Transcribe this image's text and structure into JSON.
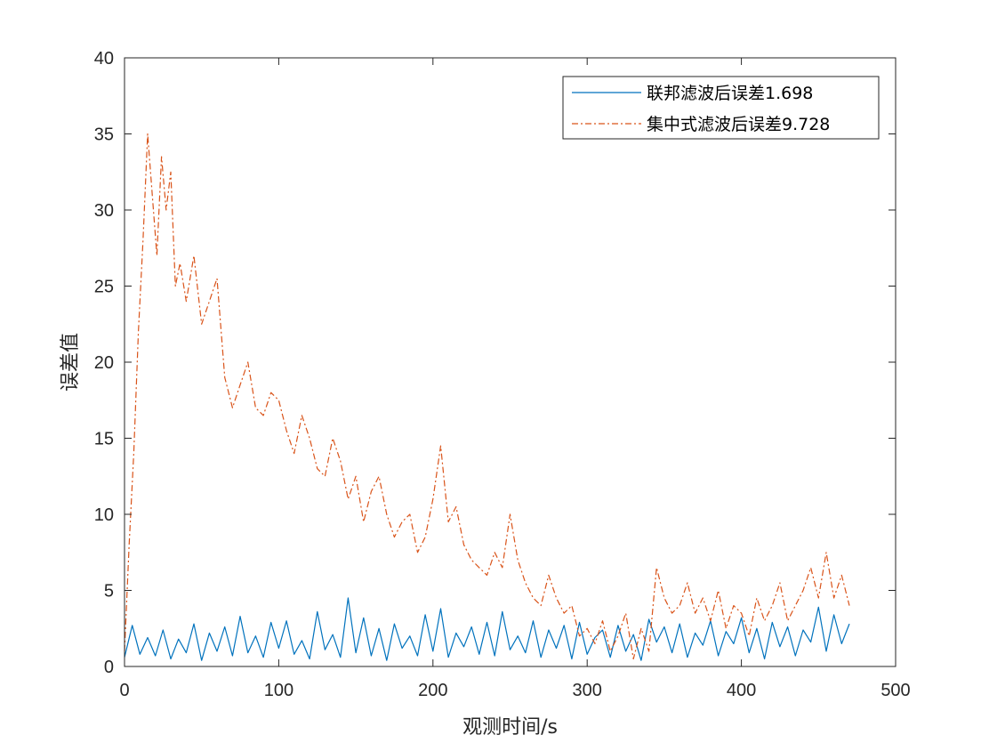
{
  "chart_data": {
    "type": "line",
    "title": "",
    "xlabel": "观测时间/s",
    "ylabel": "误差值",
    "xlim": [
      0,
      500
    ],
    "ylim": [
      0,
      40
    ],
    "xticks": [
      0,
      100,
      200,
      300,
      400,
      500
    ],
    "yticks": [
      0,
      5,
      10,
      15,
      20,
      25,
      30,
      35,
      40
    ],
    "grid": false,
    "box": true,
    "legend_position": "top-right",
    "series": [
      {
        "name": "联邦滤波后误差1.698",
        "color": "#0072BD",
        "line_style": "solid",
        "x": [
          0,
          5,
          10,
          15,
          20,
          25,
          30,
          35,
          40,
          45,
          50,
          55,
          60,
          65,
          70,
          75,
          80,
          85,
          90,
          95,
          100,
          105,
          110,
          115,
          120,
          125,
          130,
          135,
          140,
          145,
          150,
          155,
          160,
          165,
          170,
          175,
          180,
          185,
          190,
          195,
          200,
          205,
          210,
          215,
          220,
          225,
          230,
          235,
          240,
          245,
          250,
          255,
          260,
          265,
          270,
          275,
          280,
          285,
          290,
          295,
          300,
          305,
          310,
          315,
          320,
          325,
          330,
          335,
          340,
          345,
          350,
          355,
          360,
          365,
          370,
          375,
          380,
          385,
          390,
          395,
          400,
          405,
          410,
          415,
          420,
          425,
          430,
          435,
          440,
          445,
          450,
          455,
          460,
          465,
          470
        ],
        "y": [
          0.6,
          2.7,
          0.8,
          1.9,
          0.7,
          2.4,
          0.5,
          1.8,
          0.9,
          2.8,
          0.4,
          2.2,
          1.0,
          2.6,
          0.7,
          3.3,
          0.9,
          2.0,
          0.6,
          2.9,
          1.2,
          3.0,
          0.8,
          1.7,
          0.5,
          3.6,
          1.1,
          2.1,
          0.6,
          4.5,
          0.9,
          3.2,
          0.7,
          2.5,
          0.4,
          2.8,
          1.2,
          2.0,
          0.7,
          3.4,
          1.0,
          3.8,
          0.6,
          2.2,
          1.3,
          2.6,
          0.8,
          2.9,
          0.7,
          3.6,
          1.1,
          2.0,
          0.9,
          3.0,
          0.6,
          2.4,
          1.2,
          2.7,
          0.5,
          2.9,
          0.8,
          1.9,
          2.4,
          0.6,
          2.7,
          1.0,
          2.1,
          0.4,
          3.1,
          1.6,
          2.6,
          0.9,
          2.8,
          0.6,
          2.2,
          1.4,
          3.0,
          0.7,
          2.3,
          1.5,
          3.2,
          0.9,
          2.5,
          0.5,
          2.9,
          1.3,
          2.6,
          0.7,
          2.4,
          1.6,
          3.9,
          1.0,
          3.4,
          1.5,
          2.8
        ]
      },
      {
        "name": "集中式滤波后误差9.728",
        "color": "#D95319",
        "line_style": "dash-dot",
        "x": [
          0,
          3,
          6,
          9,
          12,
          15,
          18,
          21,
          24,
          27,
          30,
          33,
          36,
          40,
          45,
          50,
          55,
          60,
          65,
          70,
          75,
          80,
          85,
          90,
          95,
          100,
          105,
          110,
          115,
          120,
          125,
          130,
          135,
          140,
          145,
          150,
          155,
          160,
          165,
          170,
          175,
          180,
          185,
          190,
          195,
          200,
          205,
          210,
          215,
          220,
          225,
          230,
          235,
          240,
          245,
          250,
          255,
          260,
          265,
          270,
          275,
          280,
          285,
          290,
          295,
          300,
          305,
          310,
          315,
          320,
          325,
          330,
          335,
          340,
          345,
          350,
          355,
          360,
          365,
          370,
          375,
          380,
          385,
          390,
          395,
          400,
          405,
          410,
          415,
          420,
          425,
          430,
          435,
          440,
          445,
          450,
          455,
          460,
          465,
          470
        ],
        "y": [
          1.0,
          8.0,
          14.0,
          22.0,
          28.0,
          35.0,
          31.0,
          27.0,
          33.5,
          30.0,
          32.5,
          25.0,
          26.5,
          24.0,
          27.0,
          22.5,
          24.0,
          25.5,
          19.0,
          17.0,
          18.5,
          20.0,
          17.0,
          16.5,
          18.0,
          17.5,
          15.5,
          14.0,
          16.5,
          15.0,
          13.0,
          12.5,
          15.0,
          13.5,
          11.0,
          12.5,
          9.5,
          11.5,
          12.5,
          10.0,
          8.5,
          9.5,
          10.0,
          7.5,
          8.5,
          11.0,
          14.5,
          9.5,
          10.5,
          8.0,
          7.0,
          6.5,
          6.0,
          7.5,
          6.5,
          10.0,
          7.0,
          5.5,
          4.5,
          4.0,
          6.0,
          4.5,
          3.5,
          4.0,
          2.0,
          2.5,
          1.5,
          3.0,
          1.0,
          2.0,
          3.5,
          0.5,
          2.5,
          1.0,
          6.5,
          4.5,
          3.5,
          4.0,
          5.5,
          3.5,
          4.5,
          3.0,
          5.0,
          2.5,
          4.0,
          3.5,
          2.0,
          4.5,
          3.0,
          4.0,
          5.5,
          3.0,
          4.0,
          5.0,
          6.5,
          4.5,
          7.5,
          4.5,
          6.0,
          4.0
        ]
      }
    ]
  }
}
